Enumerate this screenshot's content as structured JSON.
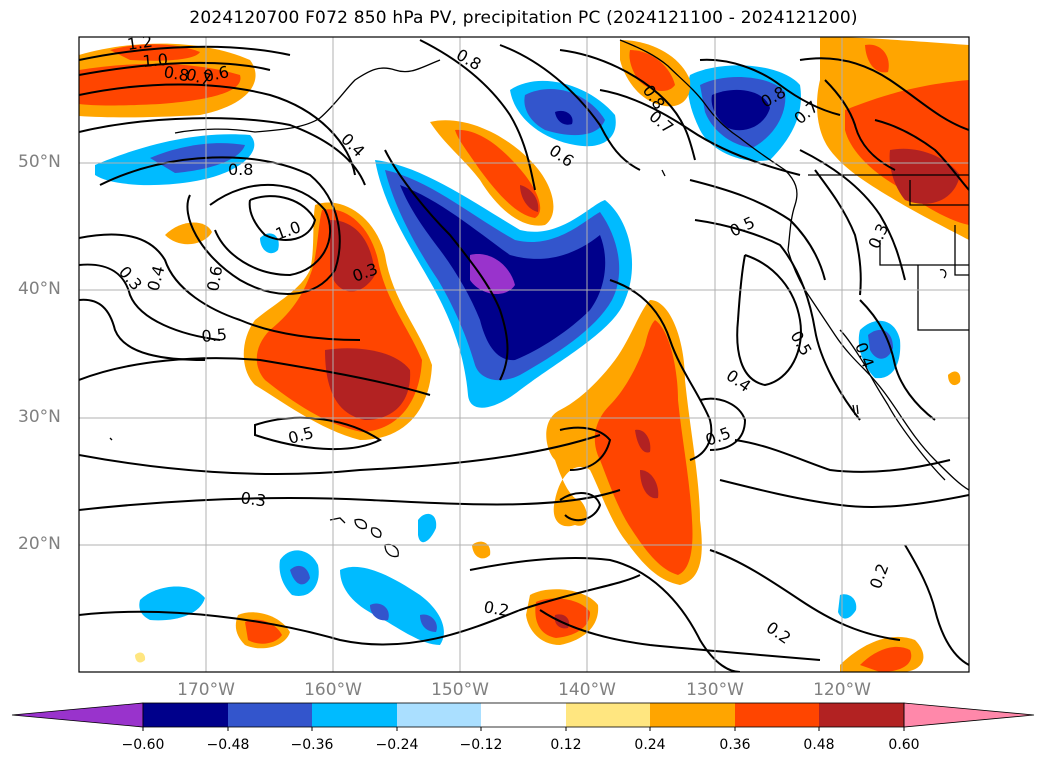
{
  "title": "2024120700 F072 850 hPa PV, precipitation PC (2024121100 - 2024121200)",
  "map": {
    "lat_labels": [
      "50°N",
      "40°N",
      "30°N",
      "20°N"
    ],
    "lon_labels": [
      "170°W",
      "160°W",
      "150°W",
      "140°W",
      "130°W",
      "120°W"
    ],
    "gridlines": true,
    "shaded_field": "precipitation PC",
    "contour_field": "850 hPa PV",
    "contour_labels": [
      "1.2",
      "1.0",
      "0.8",
      "0.7",
      "0.6",
      "0.8",
      "0.4",
      "0.8",
      "0.6",
      "0.7",
      "0.8",
      "0.7",
      "0.8",
      "1.0",
      "0.3",
      "0.4",
      "0.6",
      "0.5",
      "0.3",
      "0.5",
      "0.3",
      "0.5",
      "0.5",
      "0.4",
      "0.3",
      "0.4",
      "0.5",
      "0.2",
      "0.2",
      "0.2"
    ]
  },
  "colorbar": {
    "tick_labels": [
      "−0.60",
      "−0.48",
      "−0.36",
      "−0.24",
      "−0.12",
      "0.12",
      "0.24",
      "0.36",
      "0.48",
      "0.60"
    ],
    "colors": [
      "#9933cc",
      "#00008b",
      "#3355cc",
      "#00bbff",
      "#aadfff",
      "#ffffff",
      "#ffe680",
      "#ffa500",
      "#ff4500",
      "#b22222",
      "#ff88aa"
    ],
    "extend": "both"
  }
}
